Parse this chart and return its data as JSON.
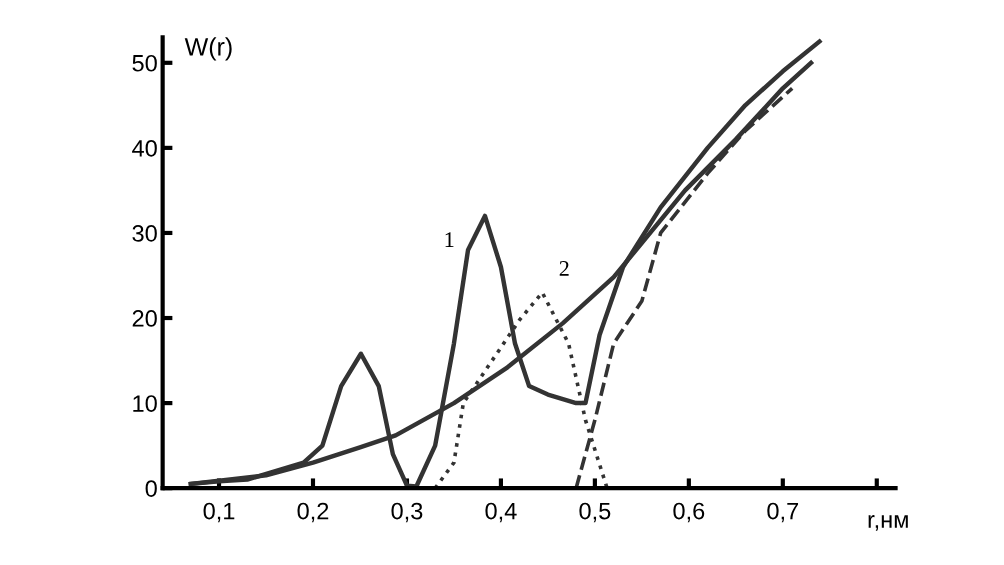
{
  "chart_data": {
    "type": "line",
    "xlabel": "r,нм",
    "ylabel": "W(r)",
    "xlim": [
      0.04,
      0.82
    ],
    "ylim": [
      0,
      53
    ],
    "xticks": [
      {
        "value": 0.1,
        "label": "0,1"
      },
      {
        "value": 0.2,
        "label": "0,2"
      },
      {
        "value": 0.3,
        "label": "0,3"
      },
      {
        "value": 0.4,
        "label": "0,4"
      },
      {
        "value": 0.5,
        "label": "0,5"
      },
      {
        "value": 0.6,
        "label": "0,6"
      },
      {
        "value": 0.7,
        "label": "0,7"
      },
      {
        "value": 0.8,
        "label": null
      }
    ],
    "yticks": [
      0,
      10,
      20,
      30,
      40,
      50
    ],
    "grid": false,
    "legend": false,
    "series": [
      {
        "color": "#333333",
        "line_style": "solid",
        "x": [
          0.07,
          0.1,
          0.13,
          0.16,
          0.19,
          0.21,
          0.23,
          0.251,
          0.27,
          0.285,
          0.3,
          0.31,
          0.33,
          0.35,
          0.365,
          0.383,
          0.4,
          0.415,
          0.43,
          0.45,
          0.48,
          0.49,
          0.505,
          0.53,
          0.57,
          0.62,
          0.66,
          0.7,
          0.739
        ],
        "values": [
          0.5,
          0.8,
          1,
          2,
          3,
          5,
          12,
          15.8,
          12,
          4,
          0.3,
          0.2,
          5,
          17,
          28,
          32,
          26,
          17,
          12,
          11,
          10,
          10,
          18,
          26,
          33,
          40,
          45,
          49,
          52.5
        ]
      },
      {
        "color": "#333333",
        "line_style": "solid",
        "x": [
          0.07,
          0.15,
          0.2,
          0.25,
          0.288,
          0.35,
          0.407,
          0.466,
          0.52,
          0.596,
          0.65,
          0.7,
          0.73
        ],
        "values": [
          0.5,
          1.5,
          3,
          4.8,
          6.2,
          10,
          14.2,
          19.4,
          24.8,
          35,
          41,
          47,
          50
        ]
      },
      {
        "color": "#333333",
        "line_style": "dotted",
        "x": [
          0.33,
          0.35,
          0.36,
          0.42,
          0.444,
          0.472,
          0.49,
          0.513
        ],
        "values": [
          0,
          3,
          10,
          19.8,
          23,
          17,
          8,
          0
        ]
      },
      {
        "color": "#333333",
        "line_style": "dashed",
        "x": [
          0.48,
          0.5,
          0.52,
          0.55,
          0.57,
          0.62,
          0.66,
          0.71
        ],
        "values": [
          0,
          8,
          17,
          22,
          30,
          37,
          42,
          47
        ]
      }
    ],
    "annotations": [
      "1",
      "2"
    ]
  }
}
